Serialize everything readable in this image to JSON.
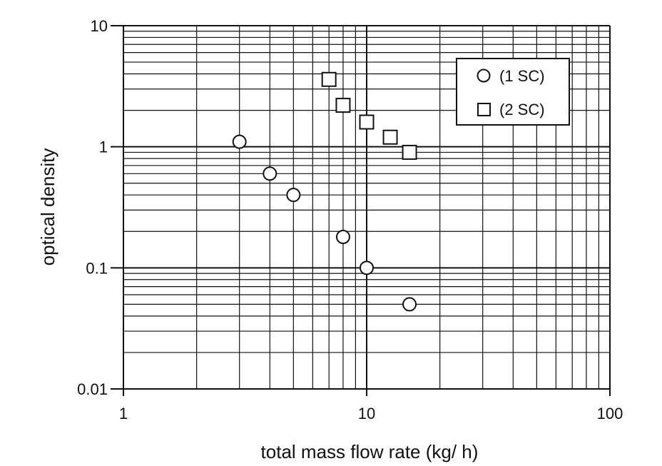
{
  "chart_data": {
    "type": "scatter",
    "x_scale": "log",
    "y_scale": "log",
    "xlim": [
      1,
      100
    ],
    "ylim": [
      0.01,
      10
    ],
    "xlabel": "total mass flow rate (kg/ h)",
    "ylabel": "optical density",
    "x_ticks": [
      "1",
      "10",
      "100"
    ],
    "y_ticks": [
      "0.01",
      "0.1",
      "1",
      "10"
    ],
    "grid": true,
    "legend_position": "top-right",
    "series": [
      {
        "name": "(1 SC)",
        "marker": "circle",
        "points": [
          [
            3,
            1.1
          ],
          [
            4,
            0.6
          ],
          [
            5,
            0.4
          ],
          [
            8,
            0.18
          ],
          [
            10,
            0.1
          ],
          [
            15,
            0.05
          ]
        ]
      },
      {
        "name": "(2 SC)",
        "marker": "square",
        "points": [
          [
            7,
            3.6
          ],
          [
            8,
            2.2
          ],
          [
            10,
            1.6
          ],
          [
            12.5,
            1.2
          ],
          [
            15,
            0.9
          ]
        ]
      }
    ]
  }
}
